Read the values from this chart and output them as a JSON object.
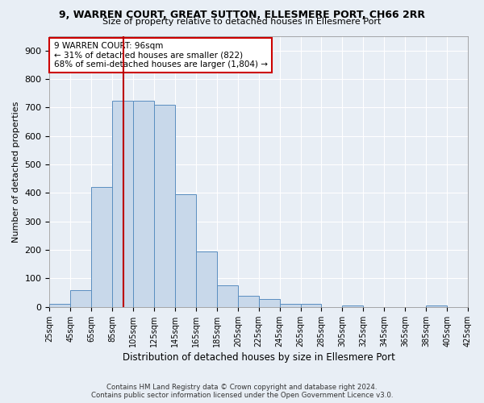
{
  "title": "9, WARREN COURT, GREAT SUTTON, ELLESMERE PORT, CH66 2RR",
  "subtitle": "Size of property relative to detached houses in Ellesmere Port",
  "xlabel": "Distribution of detached houses by size in Ellesmere Port",
  "ylabel": "Number of detached properties",
  "footer_line1": "Contains HM Land Registry data © Crown copyright and database right 2024.",
  "footer_line2": "Contains public sector information licensed under the Open Government Licence v3.0.",
  "bin_edges": [
    25,
    45,
    65,
    85,
    105,
    125,
    145,
    165,
    185,
    205,
    225,
    245,
    265,
    285,
    305,
    325,
    345,
    365,
    385,
    405,
    425
  ],
  "bar_heights": [
    10,
    60,
    420,
    725,
    725,
    710,
    395,
    195,
    75,
    40,
    28,
    10,
    10,
    0,
    5,
    0,
    0,
    0,
    5,
    0
  ],
  "bar_color": "#c8d8ea",
  "bar_edge_color": "#5a8ec0",
  "tick_labels": [
    "25sqm",
    "45sqm",
    "65sqm",
    "85sqm",
    "105sqm",
    "125sqm",
    "145sqm",
    "165sqm",
    "185sqm",
    "205sqm",
    "225sqm",
    "245sqm",
    "265sqm",
    "285sqm",
    "305sqm",
    "325sqm",
    "345sqm",
    "365sqm",
    "385sqm",
    "405sqm",
    "425sqm"
  ],
  "vline_x": 96,
  "vline_color": "#bb0000",
  "ylim": [
    0,
    950
  ],
  "yticks": [
    0,
    100,
    200,
    300,
    400,
    500,
    600,
    700,
    800,
    900
  ],
  "annotation_text": "9 WARREN COURT: 96sqm\n← 31% of detached houses are smaller (822)\n68% of semi-detached houses are larger (1,804) →",
  "annotation_box_color": "#ffffff",
  "annotation_box_edge_color": "#cc0000",
  "background_color": "#e8eef5",
  "plot_bg_color": "#e8eef5",
  "grid_color": "#ffffff",
  "title_fontsize": 9,
  "subtitle_fontsize": 8
}
